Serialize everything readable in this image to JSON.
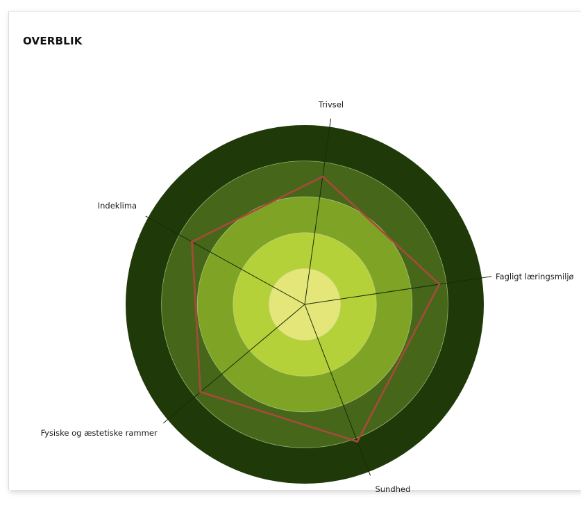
{
  "title": "OVERBLIK",
  "chart_data": {
    "type": "radar",
    "title": "OVERBLIK",
    "axes": [
      "Trivsel",
      "Fagligt læringsmiljø",
      "Sundhed",
      "Fysiske og æstetiske rammer",
      "Indeklima"
    ],
    "axis_labels_shown": [
      "Trivsel",
      "Fagligt læringsmiljø",
      "Sundhed",
      "Fysiske og æstetiske rammer",
      "Indeklima"
    ],
    "levels": 5,
    "rmax": 5,
    "series": [
      {
        "values": [
          3.6,
          3.8,
          4.1,
          3.8,
          3.6
        ],
        "color": "#a84a3a"
      }
    ],
    "band_colors": [
      "#e4e67a",
      "#b5d13a",
      "#7fa324",
      "#46661a",
      "#1f3a08"
    ],
    "grid": true,
    "legend": "none"
  }
}
